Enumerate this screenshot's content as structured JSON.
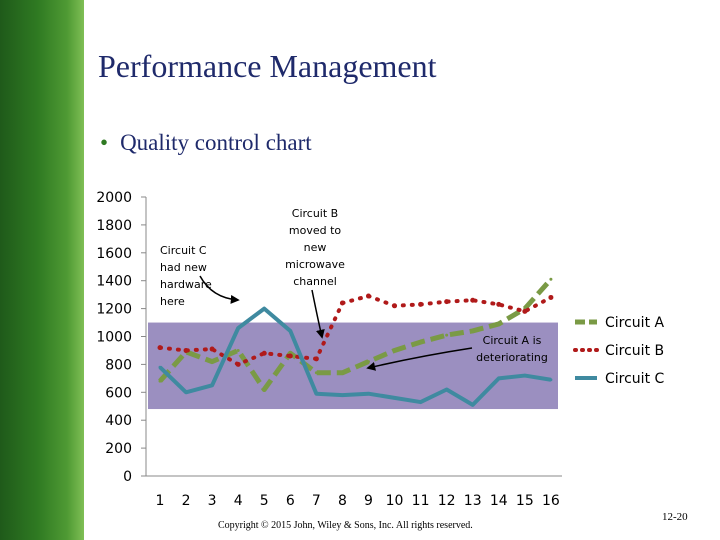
{
  "slide": {
    "title": "Performance Management",
    "bullet": "Quality control chart",
    "copyright": "Copyright © 2015 John, Wiley & Sons, Inc. All rights reserved.",
    "page_number": "12-20"
  },
  "chart_data": {
    "type": "line",
    "x": [
      1,
      2,
      3,
      4,
      5,
      6,
      7,
      8,
      9,
      10,
      11,
      12,
      13,
      14,
      15,
      16
    ],
    "ylim": [
      0,
      2000
    ],
    "yticks": [
      0,
      200,
      400,
      600,
      800,
      1000,
      1200,
      1400,
      1600,
      1800,
      2000
    ],
    "control_band": [
      480,
      1100
    ],
    "legend_position": "right",
    "series": [
      {
        "name": "Circuit A",
        "color": "#7a9a45",
        "style": "dashed",
        "values": [
          680,
          890,
          820,
          900,
          620,
          880,
          740,
          740,
          820,
          900,
          960,
          1010,
          1040,
          1090,
          1200,
          1410
        ]
      },
      {
        "name": "Circuit B",
        "color": "#b01a1a",
        "style": "dotted",
        "values": [
          920,
          900,
          910,
          800,
          880,
          860,
          840,
          1240,
          1290,
          1220,
          1230,
          1250,
          1260,
          1230,
          1180,
          1280
        ]
      },
      {
        "name": "Circuit C",
        "color": "#3f8aa0",
        "style": "solid",
        "values": [
          780,
          600,
          650,
          1060,
          1200,
          1040,
          590,
          580,
          590,
          560,
          530,
          620,
          510,
          700,
          720,
          690
        ]
      }
    ],
    "annotations": [
      {
        "id": "c",
        "lines": [
          "Circuit C",
          "had new",
          "hardware",
          "here"
        ]
      },
      {
        "id": "b",
        "lines": [
          "Circuit B",
          "moved to",
          "new",
          "microwave",
          "channel"
        ]
      },
      {
        "id": "a",
        "lines": [
          "Circuit A is",
          "deteriorating"
        ]
      }
    ]
  }
}
